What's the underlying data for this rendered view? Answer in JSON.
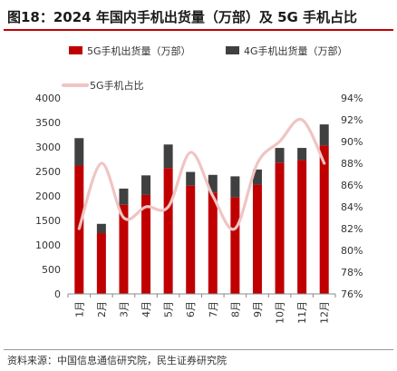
{
  "header": {
    "title": "图18：2024 年国内手机出货量（万部）及 5G 手机占比"
  },
  "footer": {
    "source": "资料来源：中国信息通信研究院，民生证券研究院"
  },
  "colors": {
    "bar_5g": "#c00000",
    "bar_4g": "#404040",
    "line_share": "#f0c4c4",
    "title_rule": "#c00000"
  },
  "chart_data": {
    "type": "bar",
    "stacked": true,
    "categories": [
      "1月",
      "2月",
      "3月",
      "4月",
      "5月",
      "6月",
      "7月",
      "8月",
      "9月",
      "10月",
      "11月",
      "12月"
    ],
    "series": [
      {
        "name": "5G手机出货量（万部）",
        "type": "bar",
        "axis": "left",
        "values": [
          2620,
          1240,
          1820,
          2020,
          2570,
          2210,
          2070,
          1970,
          2230,
          2680,
          2730,
          3030
        ]
      },
      {
        "name": "4G手机出货量（万部）",
        "type": "bar",
        "axis": "left",
        "values": [
          560,
          190,
          330,
          400,
          480,
          280,
          360,
          430,
          310,
          300,
          250,
          430
        ]
      },
      {
        "name": "5G手机占比",
        "type": "line",
        "axis": "right",
        "values": [
          82.0,
          88.0,
          83.0,
          84.0,
          84.0,
          89.0,
          85.0,
          82.0,
          88.0,
          90.0,
          92.0,
          88.0
        ]
      }
    ],
    "ylim": [
      0,
      4000
    ],
    "yticks": [
      "0",
      "500",
      "1000",
      "1500",
      "2000",
      "2500",
      "3000",
      "3500",
      "4000"
    ],
    "y2lim": [
      76,
      94
    ],
    "y2ticks": [
      "76%",
      "78%",
      "80%",
      "82%",
      "84%",
      "86%",
      "88%",
      "90%",
      "92%",
      "94%"
    ],
    "legend_position": "top",
    "grid": false
  }
}
